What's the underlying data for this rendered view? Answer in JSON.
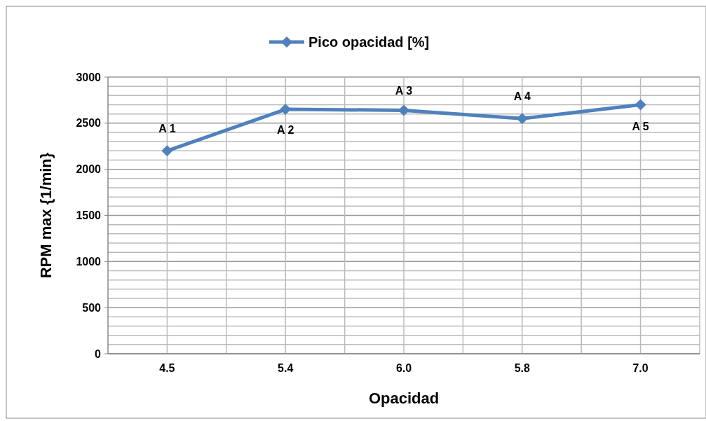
{
  "chart_data": {
    "type": "line",
    "xlabel": "Opacidad",
    "ylabel": "RPM max {1/min}",
    "categories": [
      "4.5",
      "5.4",
      "6.0",
      "5.8",
      "7.0"
    ],
    "series": [
      {
        "name": "Pico opacidad [%]",
        "color": "#4f81bd",
        "values": [
          2200,
          2650,
          2640,
          2550,
          2700
        ]
      }
    ],
    "ylim": [
      0,
      3000
    ],
    "yticks": [
      0,
      500,
      1000,
      1500,
      2000,
      2500,
      3000
    ],
    "grid": true,
    "legend": "top",
    "marker": "diamond",
    "line_style": "solid",
    "annotations": [
      {
        "text": "A 1",
        "x": "4.5",
        "y": 2200
      },
      {
        "text": "A 2",
        "x": "5.4",
        "y": 2650
      },
      {
        "text": "A 3",
        "x": "6.0",
        "y": 2640
      },
      {
        "text": "A 4",
        "x": "5.8",
        "y": 2550
      },
      {
        "text": "A 5",
        "x": "7.0",
        "y": 2700
      }
    ]
  }
}
